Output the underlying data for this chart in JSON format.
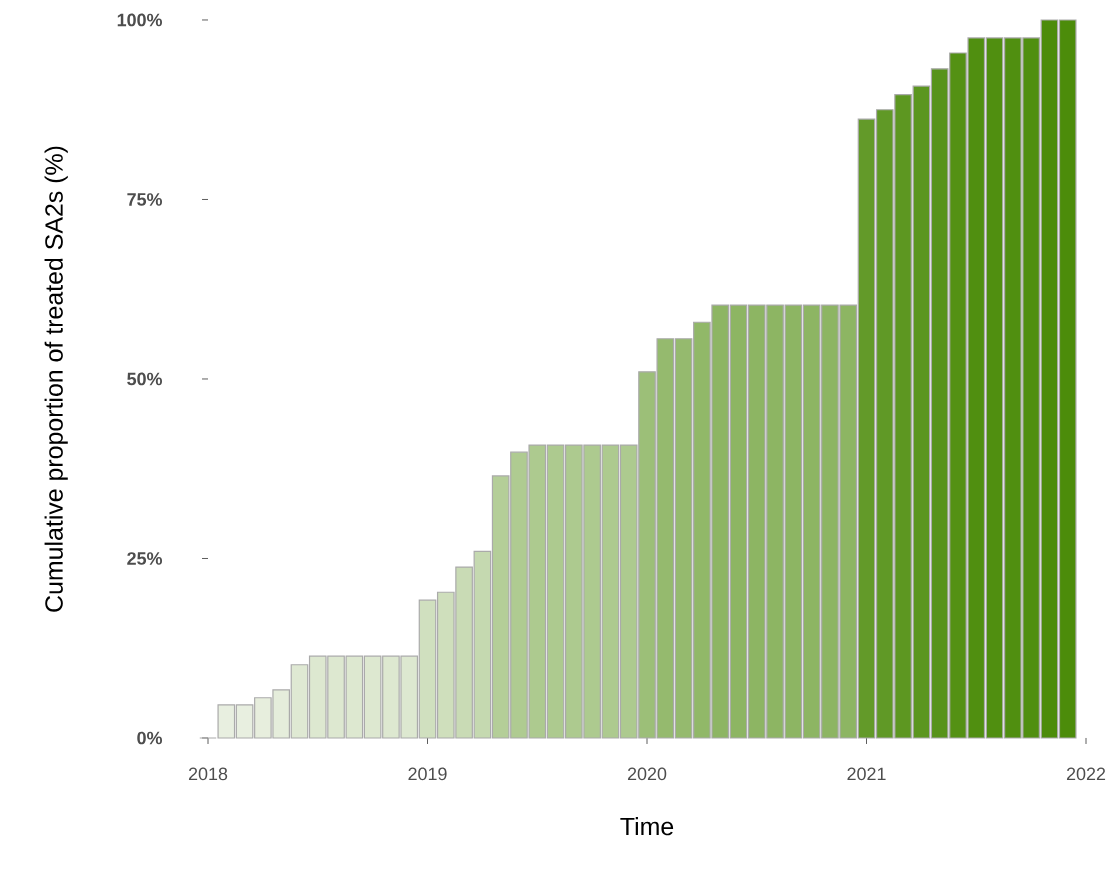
{
  "chart_data": {
    "type": "bar",
    "xlabel": "Time",
    "ylabel": "Cumulative proportion of treated SA2s (%)",
    "x": [
      "2018-01",
      "2018-02",
      "2018-03",
      "2018-04",
      "2018-05",
      "2018-06",
      "2018-07",
      "2018-08",
      "2018-09",
      "2018-10",
      "2018-11",
      "2018-12",
      "2019-01",
      "2019-02",
      "2019-03",
      "2019-04",
      "2019-05",
      "2019-06",
      "2019-07",
      "2019-08",
      "2019-09",
      "2019-10",
      "2019-11",
      "2019-12",
      "2020-01",
      "2020-02",
      "2020-03",
      "2020-04",
      "2020-05",
      "2020-06",
      "2020-07",
      "2020-08",
      "2020-09",
      "2020-10",
      "2020-11",
      "2020-12",
      "2021-01",
      "2021-02",
      "2021-03",
      "2021-04",
      "2021-05",
      "2021-06",
      "2021-07",
      "2021-08",
      "2021-09",
      "2021-10",
      "2021-11",
      "2021-12"
    ],
    "values": [
      0,
      4.6,
      4.6,
      5.6,
      6.7,
      10.2,
      11.4,
      11.4,
      11.4,
      11.4,
      11.4,
      11.4,
      19.2,
      20.3,
      23.8,
      26,
      36.5,
      39.8,
      40.8,
      40.8,
      40.8,
      40.8,
      40.8,
      40.8,
      51,
      55.6,
      55.6,
      57.9,
      60.3,
      60.3,
      60.3,
      60.3,
      60.3,
      60.3,
      60.3,
      60.3,
      86.2,
      87.5,
      89.6,
      90.8,
      93.2,
      95.4,
      97.5,
      97.5,
      97.5,
      97.5,
      100,
      100
    ],
    "colors": [
      "#f0f4ea",
      "#e8efe0",
      "#e8efe0",
      "#e7eedd",
      "#e5eddb",
      "#dfe9d3",
      "#dde8d0",
      "#dde8d0",
      "#dde8d0",
      "#dde8d0",
      "#dde8d0",
      "#dde8d0",
      "#d0e0bf",
      "#cfdfbc",
      "#c9dbb5",
      "#c5d9b0",
      "#b4ce98",
      "#afcb91",
      "#adca8f",
      "#adca8f",
      "#adca8f",
      "#adca8f",
      "#adca8f",
      "#adca8f",
      "#9cbf78",
      "#95ba6e",
      "#95ba6e",
      "#91b868",
      "#8db563",
      "#8db563",
      "#8db563",
      "#8db563",
      "#8db563",
      "#8db563",
      "#8db563",
      "#8db563",
      "#639a29",
      "#609926",
      "#5d9721",
      "#5b961f",
      "#57931a",
      "#549114",
      "#508f10",
      "#508f10",
      "#508f10",
      "#508f10",
      "#4c8c0a",
      "#4c8c0a"
    ],
    "xlim": [
      "2018",
      "2022"
    ],
    "xticks": [
      "2018",
      "2019",
      "2020",
      "2021",
      "2022"
    ],
    "ylim": [
      0,
      100
    ],
    "yticks": [
      {
        "value": 0,
        "label": "0%"
      },
      {
        "value": 25,
        "label": "25%"
      },
      {
        "value": 50,
        "label": "50%"
      },
      {
        "value": 75,
        "label": "75%"
      },
      {
        "value": 100,
        "label": "100%"
      }
    ]
  }
}
